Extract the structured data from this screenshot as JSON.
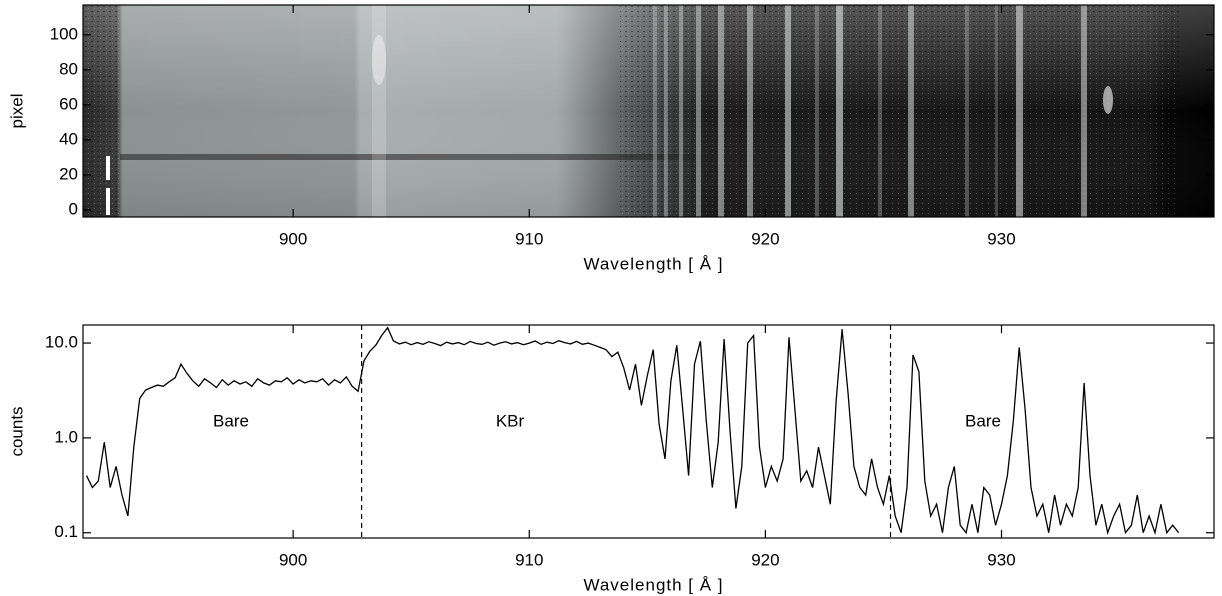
{
  "chart_data": [
    {
      "type": "image",
      "xlabel": "Wavelength [ Å ]",
      "ylabel": "pixel",
      "xlim": [
        891.1,
        939.0
      ],
      "ylim": [
        -4,
        117
      ],
      "xticks": [
        900,
        910,
        920,
        930
      ],
      "yticks": [
        0,
        20,
        40,
        60,
        80,
        100
      ]
    },
    {
      "type": "line",
      "xlabel": "Wavelength [ Å ]",
      "ylabel": "counts",
      "log": true,
      "color": "#000000",
      "xlim": [
        891.1,
        939.0
      ],
      "ylim": [
        0.088,
        15.5
      ],
      "xticks": [
        900,
        910,
        920,
        930
      ],
      "yticks": [
        0.1,
        {
          "value": 1,
          "label": "1.0"
        },
        {
          "value": 10,
          "label": "10.0"
        }
      ],
      "vlines": [
        902.9,
        925.3
      ],
      "annotations": [
        "Bare",
        "KBr",
        "Bare"
      ],
      "x": [
        891.25,
        891.5,
        891.75,
        892,
        892.25,
        892.5,
        892.75,
        893,
        893.25,
        893.5,
        893.75,
        894,
        894.25,
        894.5,
        894.75,
        895,
        895.25,
        895.5,
        895.75,
        896,
        896.25,
        896.5,
        896.75,
        897,
        897.25,
        897.5,
        897.75,
        898,
        898.25,
        898.5,
        898.75,
        899,
        899.25,
        899.5,
        899.75,
        900,
        900.25,
        900.5,
        900.75,
        901,
        901.25,
        901.5,
        901.75,
        902,
        902.25,
        902.5,
        902.75,
        903,
        903.25,
        903.5,
        903.75,
        904,
        904.25,
        904.5,
        904.75,
        905,
        905.25,
        905.5,
        905.75,
        906,
        906.25,
        906.5,
        906.75,
        907,
        907.25,
        907.5,
        907.75,
        908,
        908.25,
        908.5,
        908.75,
        909,
        909.25,
        909.5,
        909.75,
        910,
        910.25,
        910.5,
        910.75,
        911,
        911.25,
        911.5,
        911.75,
        912,
        912.25,
        912.5,
        912.75,
        913,
        913.25,
        913.5,
        913.75,
        914,
        914.25,
        914.5,
        914.75,
        915,
        915.25,
        915.5,
        915.75,
        916,
        916.25,
        916.5,
        916.75,
        917,
        917.25,
        917.5,
        917.75,
        918,
        918.25,
        918.5,
        918.75,
        919,
        919.25,
        919.5,
        919.75,
        920,
        920.25,
        920.5,
        920.75,
        921,
        921.25,
        921.5,
        921.75,
        922,
        922.25,
        922.5,
        922.75,
        923,
        923.25,
        923.5,
        923.75,
        924,
        924.25,
        924.5,
        924.75,
        925,
        925.25,
        925.5,
        925.75,
        926,
        926.25,
        926.5,
        926.75,
        927,
        927.25,
        927.5,
        927.75,
        928,
        928.25,
        928.5,
        928.75,
        929,
        929.25,
        929.5,
        929.75,
        930,
        930.25,
        930.5,
        930.75,
        931,
        931.25,
        931.5,
        931.75,
        932,
        932.25,
        932.5,
        932.75,
        933,
        933.25,
        933.5,
        933.75,
        934,
        934.25,
        934.5,
        934.75,
        935,
        935.25,
        935.5,
        935.75,
        936,
        936.25,
        936.5,
        936.75,
        937,
        937.25,
        937.5
      ],
      "values": [
        0.4,
        0.3,
        0.35,
        0.9,
        0.3,
        0.5,
        0.25,
        0.15,
        0.8,
        2.6,
        3.2,
        3.4,
        3.6,
        3.5,
        3.9,
        4.3,
        6.0,
        4.8,
        4.0,
        3.5,
        4.2,
        3.8,
        3.4,
        4.1,
        3.6,
        4.0,
        3.7,
        3.9,
        3.5,
        4.2,
        3.8,
        3.6,
        4.0,
        3.9,
        4.3,
        3.7,
        4.1,
        3.8,
        4.0,
        3.9,
        4.2,
        3.6,
        4.1,
        3.8,
        4.4,
        3.5,
        3.1,
        6.5,
        8.2,
        9.5,
        12.0,
        14.5,
        10.5,
        9.8,
        10.2,
        9.6,
        10.1,
        9.7,
        10.3,
        9.9,
        9.4,
        10.2,
        9.8,
        10.1,
        9.6,
        10.4,
        9.9,
        9.7,
        10.2,
        9.5,
        10.0,
        10.3,
        9.8,
        10.1,
        9.6,
        10.0,
        10.5,
        9.7,
        10.2,
        9.9,
        10.6,
        10.1,
        9.8,
        10.4,
        9.7,
        10.0,
        9.5,
        9.0,
        8.5,
        7.2,
        8.0,
        5.5,
        3.2,
        6.0,
        2.2,
        4.5,
        8.5,
        1.4,
        0.6,
        4.0,
        9.5,
        2.0,
        0.4,
        6.0,
        10.5,
        1.5,
        0.3,
        0.9,
        11.0,
        1.2,
        0.18,
        0.5,
        10.0,
        12.0,
        0.8,
        0.3,
        0.5,
        0.35,
        0.6,
        11.5,
        2.0,
        0.35,
        0.45,
        0.3,
        0.8,
        0.4,
        0.2,
        2.5,
        14.0,
        3.0,
        0.5,
        0.3,
        0.25,
        0.6,
        0.3,
        0.2,
        0.4,
        0.15,
        0.1,
        0.3,
        7.5,
        5.0,
        0.35,
        0.15,
        0.2,
        0.1,
        0.3,
        0.5,
        0.12,
        0.1,
        0.2,
        0.1,
        0.3,
        0.25,
        0.12,
        0.2,
        0.4,
        1.5,
        9.0,
        2.0,
        0.3,
        0.15,
        0.2,
        0.1,
        0.25,
        0.12,
        0.2,
        0.15,
        0.3,
        3.8,
        0.4,
        0.12,
        0.2,
        0.1,
        0.15,
        0.2,
        0.1,
        0.12,
        0.25,
        0.1,
        0.15,
        0.1,
        0.2,
        0.1,
        0.12,
        0.1
      ]
    }
  ]
}
